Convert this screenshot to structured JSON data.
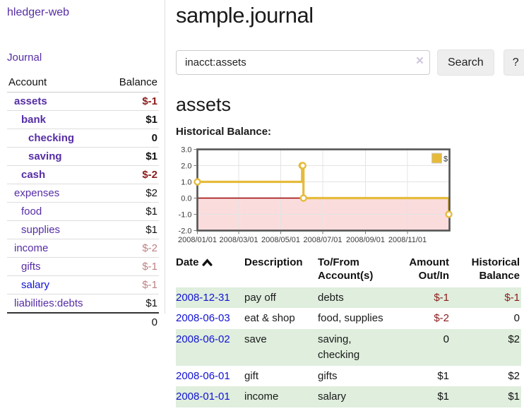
{
  "brand": "hledger-web",
  "nav": {
    "journal": "Journal"
  },
  "sidebar": {
    "col_account": "Account",
    "col_balance": "Balance",
    "accounts": [
      {
        "name": "assets",
        "balance": "$-1"
      },
      {
        "name": "bank",
        "balance": "$1"
      },
      {
        "name": "checking",
        "balance": "0"
      },
      {
        "name": "saving",
        "balance": "$1"
      },
      {
        "name": "cash",
        "balance": "$-2"
      },
      {
        "name": "expenses",
        "balance": "$2"
      },
      {
        "name": "food",
        "balance": "$1"
      },
      {
        "name": "supplies",
        "balance": "$1"
      },
      {
        "name": "income",
        "balance": "$-2"
      },
      {
        "name": "gifts",
        "balance": "$-1"
      },
      {
        "name": "salary",
        "balance": "$-1"
      },
      {
        "name": "liabilities:debts",
        "balance": "$1"
      }
    ],
    "total": "0"
  },
  "main": {
    "title": "sample.journal",
    "search": {
      "value": "inacct:assets",
      "clear": "×",
      "submit": "Search",
      "help": "?"
    },
    "account_title": "assets",
    "chart_label": "Historical Balance:"
  },
  "chart_data": {
    "type": "line",
    "title": "Historical Balance",
    "step": true,
    "x": [
      "2008-01-01",
      "2008-06-01",
      "2008-06-02",
      "2008-06-03",
      "2008-12-31"
    ],
    "series": [
      {
        "name": "$",
        "values": [
          1,
          2,
          2,
          0,
          -1
        ]
      }
    ],
    "xrange": [
      "2008-01-01",
      "2009-01-01"
    ],
    "ylim": [
      -2,
      3
    ],
    "yticks": [
      "3.0",
      "2.0",
      "1.0",
      "0.0",
      "-1.0",
      "-2.0"
    ],
    "xticks": [
      "2008/01/01",
      "2008/03/01",
      "2008/05/01",
      "2008/07/01",
      "2008/09/01",
      "2008/11/01"
    ],
    "legend": {
      "label": "$",
      "position": "top-right"
    },
    "grid": true,
    "colors": {
      "line": "#e6bb3c",
      "marker_fill": "#ffffff",
      "negative_region": "#fbdcdd",
      "zero_line": "#990000",
      "grid": "#e4e4e4",
      "border": "#545454",
      "tick": "#777777",
      "label": "#3a3a3a"
    }
  },
  "register": {
    "col_date": "Date",
    "col_description": "Description",
    "col_accounts": "To/From Account(s)",
    "col_amount": "Amount Out/In",
    "col_balance": "Historical Balance",
    "rows": [
      {
        "date": "2008-12-31",
        "description": "pay off",
        "accounts": "debts",
        "amount": "$-1",
        "balance": "$-1"
      },
      {
        "date": "2008-06-03",
        "description": "eat & shop",
        "accounts": "food, supplies",
        "amount": "$-2",
        "balance": "0"
      },
      {
        "date": "2008-06-02",
        "description": "save",
        "accounts": "saving, checking",
        "amount": "0",
        "balance": "$2"
      },
      {
        "date": "2008-06-01",
        "description": "gift",
        "accounts": "gifts",
        "amount": "$1",
        "balance": "$2"
      },
      {
        "date": "2008-01-01",
        "description": "income",
        "accounts": "salary",
        "amount": "$1",
        "balance": "$1"
      }
    ]
  },
  "colors": {
    "accent_purple": "#562da5",
    "link_blue": "#1212d6",
    "negative_strong": "#8c1a1a",
    "negative_pale": "#bd8282",
    "row_green": "#dfeedd",
    "button_bg": "#eeeeee"
  }
}
